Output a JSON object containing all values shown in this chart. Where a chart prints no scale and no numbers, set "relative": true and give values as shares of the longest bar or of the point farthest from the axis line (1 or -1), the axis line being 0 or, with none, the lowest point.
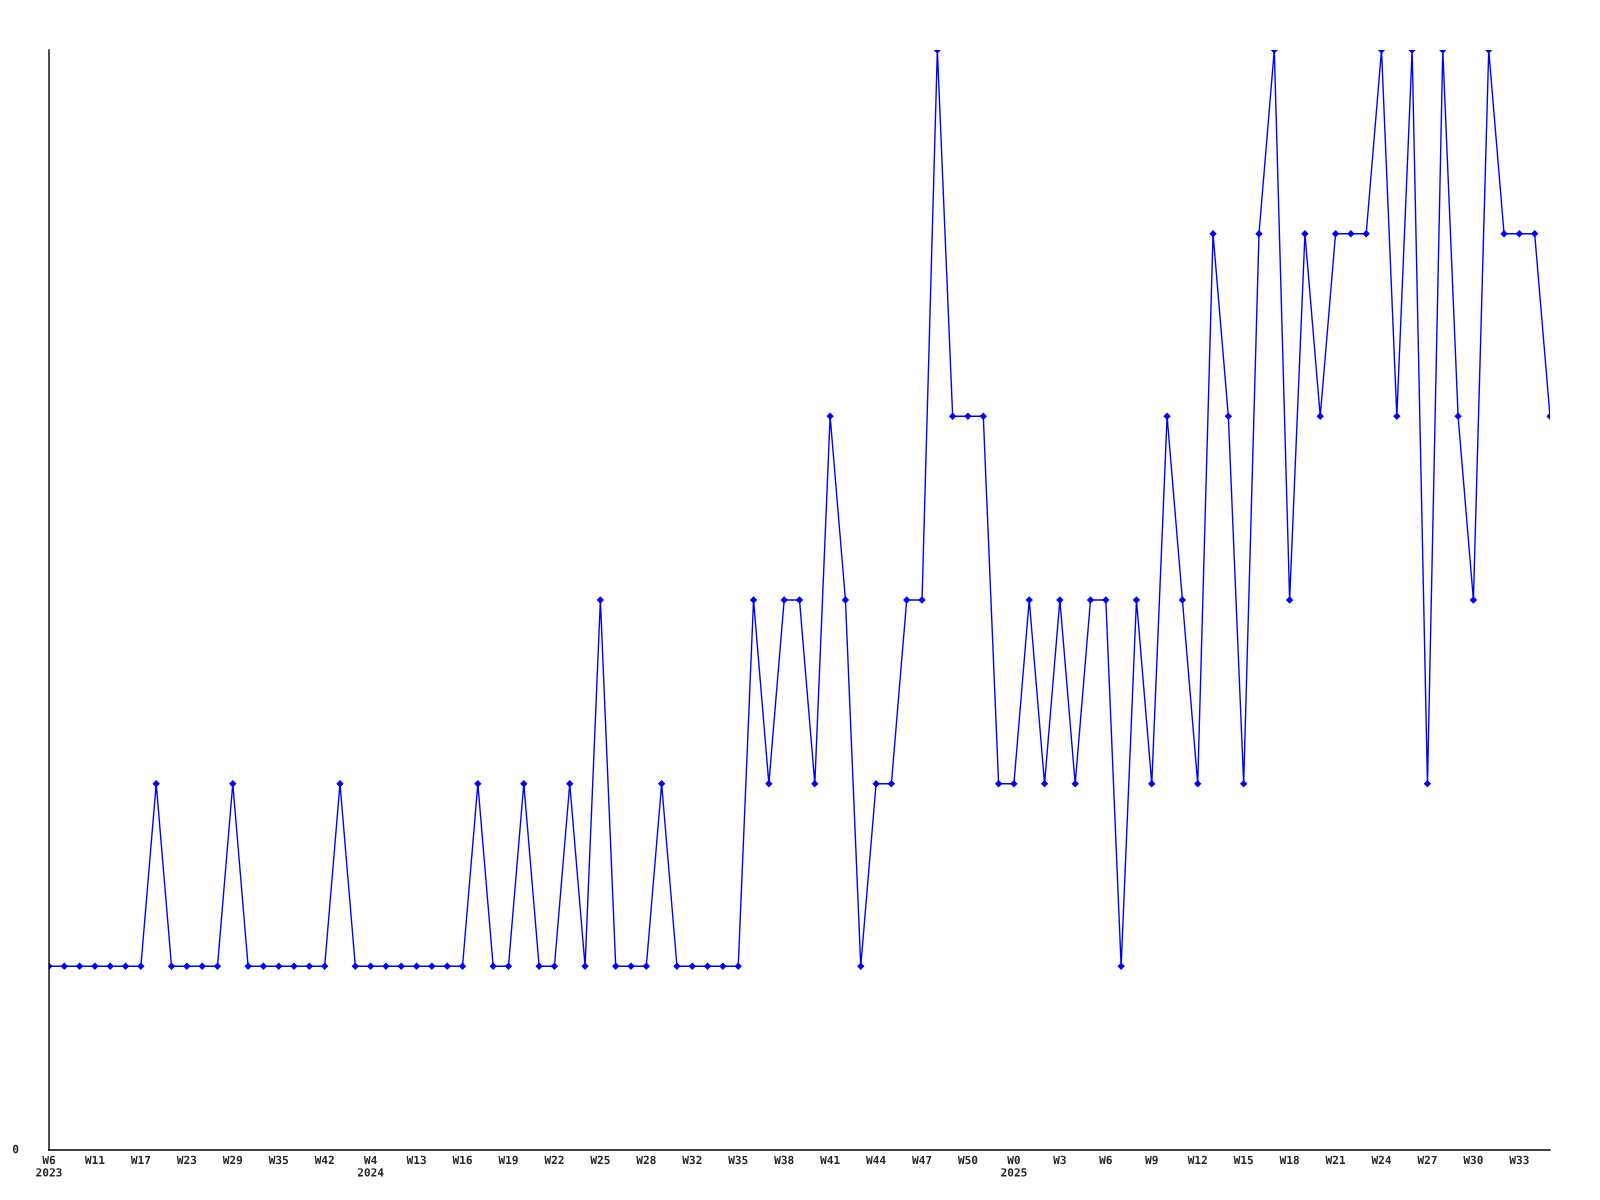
{
  "chart_data": {
    "type": "line",
    "relative": true,
    "marker": "diamond",
    "line_style": "solid",
    "grid": false,
    "legend": false,
    "categories": [
      "W6\n2023",
      null,
      null,
      "W11",
      null,
      null,
      "W17",
      null,
      null,
      "W23",
      null,
      null,
      "W29",
      null,
      null,
      "W35",
      null,
      null,
      "W42",
      null,
      null,
      "W4\n2024",
      null,
      null,
      "W13",
      null,
      null,
      "W16",
      null,
      null,
      "W19",
      null,
      null,
      "W22",
      null,
      null,
      "W25",
      null,
      null,
      "W28",
      null,
      null,
      "W32",
      null,
      null,
      "W35",
      null,
      null,
      "W38",
      null,
      null,
      "W41",
      null,
      null,
      "W44",
      null,
      null,
      "W47",
      null,
      null,
      "W50",
      null,
      null,
      "W0\n2025",
      null,
      null,
      "W3",
      null,
      null,
      "W6",
      null,
      null,
      "W9",
      null,
      null,
      "W12",
      null,
      null,
      "W15",
      null,
      null,
      "W18",
      null,
      null,
      "W21",
      null,
      null,
      "W24",
      null,
      null,
      "W27",
      null,
      null,
      "W30",
      null,
      null,
      "W33",
      null,
      null
    ],
    "series": [
      {
        "color": "#0000ff",
        "values": [
          0.167,
          0.167,
          0.167,
          0.167,
          0.167,
          0.167,
          0.167,
          0.333,
          0.167,
          0.167,
          0.167,
          0.167,
          0.333,
          0.167,
          0.167,
          0.167,
          0.167,
          0.167,
          0.167,
          0.333,
          0.167,
          0.167,
          0.167,
          0.167,
          0.167,
          0.167,
          0.167,
          0.167,
          0.333,
          0.167,
          0.167,
          0.333,
          0.167,
          0.167,
          0.333,
          0.167,
          0.5,
          0.167,
          0.167,
          0.167,
          0.333,
          0.167,
          0.167,
          0.167,
          0.167,
          0.167,
          0.5,
          0.333,
          0.5,
          0.5,
          0.333,
          0.667,
          0.5,
          0.167,
          0.333,
          0.333,
          0.5,
          0.5,
          1,
          0.667,
          0.667,
          0.667,
          0.333,
          0.333,
          0.5,
          0.333,
          0.5,
          0.333,
          0.5,
          0.5,
          0.167,
          0.5,
          0.333,
          0.667,
          0.5,
          0.333,
          0.833,
          0.667,
          0.333,
          0.833,
          1,
          0.5,
          0.833,
          0.667,
          0.833,
          0.833,
          0.833,
          1,
          0.667,
          1,
          0.333,
          1,
          0.667,
          0.5,
          1,
          0.833,
          0.833,
          0.833,
          0.667
        ]
      }
    ],
    "annotations": [
      "0"
    ]
  }
}
